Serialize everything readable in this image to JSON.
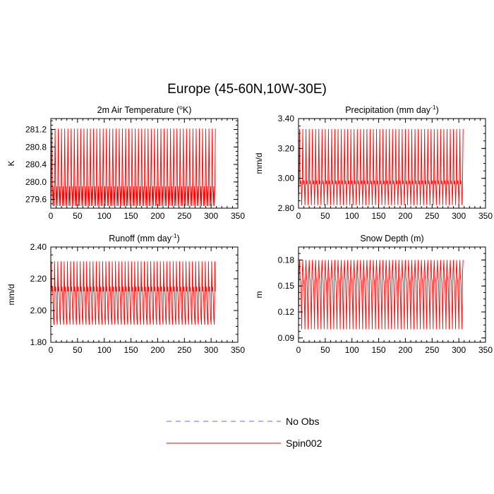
{
  "figure": {
    "title": "Europe (45-60N,10W-30E)"
  },
  "legend": [
    {
      "name": "No Obs",
      "color": "#6666ff",
      "dash": "dashed"
    },
    {
      "name": "Spin002",
      "color": "#ff0000",
      "dash": "solid"
    }
  ],
  "chart_data": [
    {
      "type": "line",
      "title": "2m Air Temperature (°K)",
      "title_parts": {
        "pre": "2m Air Temperature (",
        "sup": "o",
        "post": "K)"
      },
      "ylabel": "K",
      "xlim": [
        0,
        350
      ],
      "ylim": [
        279.4,
        281.45
      ],
      "xticks": [
        0,
        50,
        100,
        150,
        200,
        250,
        300,
        350
      ],
      "yticks": [
        279.6,
        280.0,
        280.4,
        280.8,
        281.2
      ],
      "ytick_labels": [
        "279.6",
        "280.0",
        "280.4",
        "280.8",
        "281.2"
      ],
      "series": [
        {
          "name": "Spin002",
          "color": "#ff0000",
          "x_start": 0,
          "x_end": 308,
          "period": 6,
          "cycle": [
            279.45,
            279.92,
            281.22,
            279.92,
            279.45,
            279.9
          ]
        }
      ]
    },
    {
      "type": "line",
      "title": "Precipitation (mm day-1)",
      "title_parts": {
        "pre": "Precipitation (mm day",
        "sup": "-1",
        "post": ")"
      },
      "ylabel": "mm/d",
      "xlim": [
        0,
        350
      ],
      "ylim": [
        2.8,
        3.4
      ],
      "xticks": [
        0,
        50,
        100,
        150,
        200,
        250,
        300,
        350
      ],
      "yticks": [
        2.8,
        3.0,
        3.2,
        3.4
      ],
      "ytick_labels": [
        "2.80",
        "3.00",
        "3.20",
        "3.40"
      ],
      "series": [
        {
          "name": "Spin002",
          "color": "#ff0000",
          "x_start": 0,
          "x_end": 308,
          "period": 6,
          "cycle": [
            2.82,
            2.975,
            3.33,
            2.96,
            2.985,
            2.955
          ]
        }
      ]
    },
    {
      "type": "line",
      "title": "Runoff (mm day-1)",
      "title_parts": {
        "pre": "Runoff (mm day",
        "sup": "-1",
        "post": ")"
      },
      "ylabel": "mm/d",
      "xlim": [
        0,
        350
      ],
      "ylim": [
        1.8,
        2.4
      ],
      "xticks": [
        0,
        50,
        100,
        150,
        200,
        250,
        300,
        350
      ],
      "yticks": [
        1.8,
        2.0,
        2.2,
        2.4
      ],
      "ytick_labels": [
        "1.80",
        "2.00",
        "2.20",
        "2.40"
      ],
      "series": [
        {
          "name": "Spin002",
          "color": "#ff0000",
          "x_start": 0,
          "x_end": 308,
          "period": 6,
          "cycle": [
            1.91,
            2.31,
            2.12,
            2.15,
            2.08,
            1.95
          ]
        }
      ]
    },
    {
      "type": "line",
      "title": "Snow Depth (m)",
      "title_parts": {
        "pre": "Snow Depth (m)",
        "sup": "",
        "post": ""
      },
      "ylabel": "m",
      "xlim": [
        0,
        350
      ],
      "ylim": [
        0.085,
        0.195
      ],
      "xticks": [
        0,
        50,
        100,
        150,
        200,
        250,
        300,
        350
      ],
      "yticks": [
        0.09,
        0.12,
        0.15,
        0.18
      ],
      "ytick_labels": [
        "0.09",
        "0.12",
        "0.15",
        "0.18"
      ],
      "series": [
        {
          "name": "Spin002",
          "color": "#ff0000",
          "x_start": 0,
          "x_end": 308,
          "period": 6,
          "cycle": [
            0.1,
            0.165,
            0.18,
            0.16,
            0.155,
            0.13
          ]
        }
      ]
    }
  ]
}
